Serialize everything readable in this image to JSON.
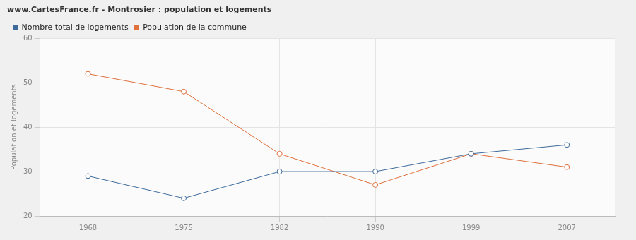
{
  "chart_data": {
    "type": "line",
    "title": "www.CartesFrance.fr - Montrosier : population et logements",
    "y_label": "Population et logements",
    "categories": [
      "1968",
      "1975",
      "1982",
      "1990",
      "1999",
      "2007"
    ],
    "series": [
      {
        "name": "Nombre total de logements",
        "color": "#3e6b9b",
        "values": [
          29,
          24,
          30,
          30,
          34,
          36
        ]
      },
      {
        "name": "Population de la commune",
        "color": "#e0703c",
        "values": [
          52,
          48,
          34,
          27,
          34,
          31
        ]
      }
    ],
    "ylim": [
      20,
      60
    ],
    "yticks": [
      20,
      30,
      40,
      50,
      60
    ],
    "grid": true,
    "legend": "top",
    "marker": "circle",
    "line_style": "solid"
  }
}
